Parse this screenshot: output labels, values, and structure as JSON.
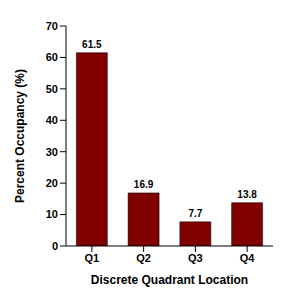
{
  "chart_data": {
    "type": "bar",
    "xlabel": "Discrete Quadrant Location",
    "ylabel": "Percent Occupancy (%)",
    "categories": [
      "Q1",
      "Q2",
      "Q3",
      "Q4"
    ],
    "values": [
      61.5,
      16.9,
      7.7,
      13.8
    ],
    "color": "#800000",
    "ylim": [
      0,
      70
    ],
    "yticks": [
      0,
      10,
      20,
      30,
      40,
      50,
      60,
      70
    ],
    "grid": false,
    "data_labels": true
  }
}
